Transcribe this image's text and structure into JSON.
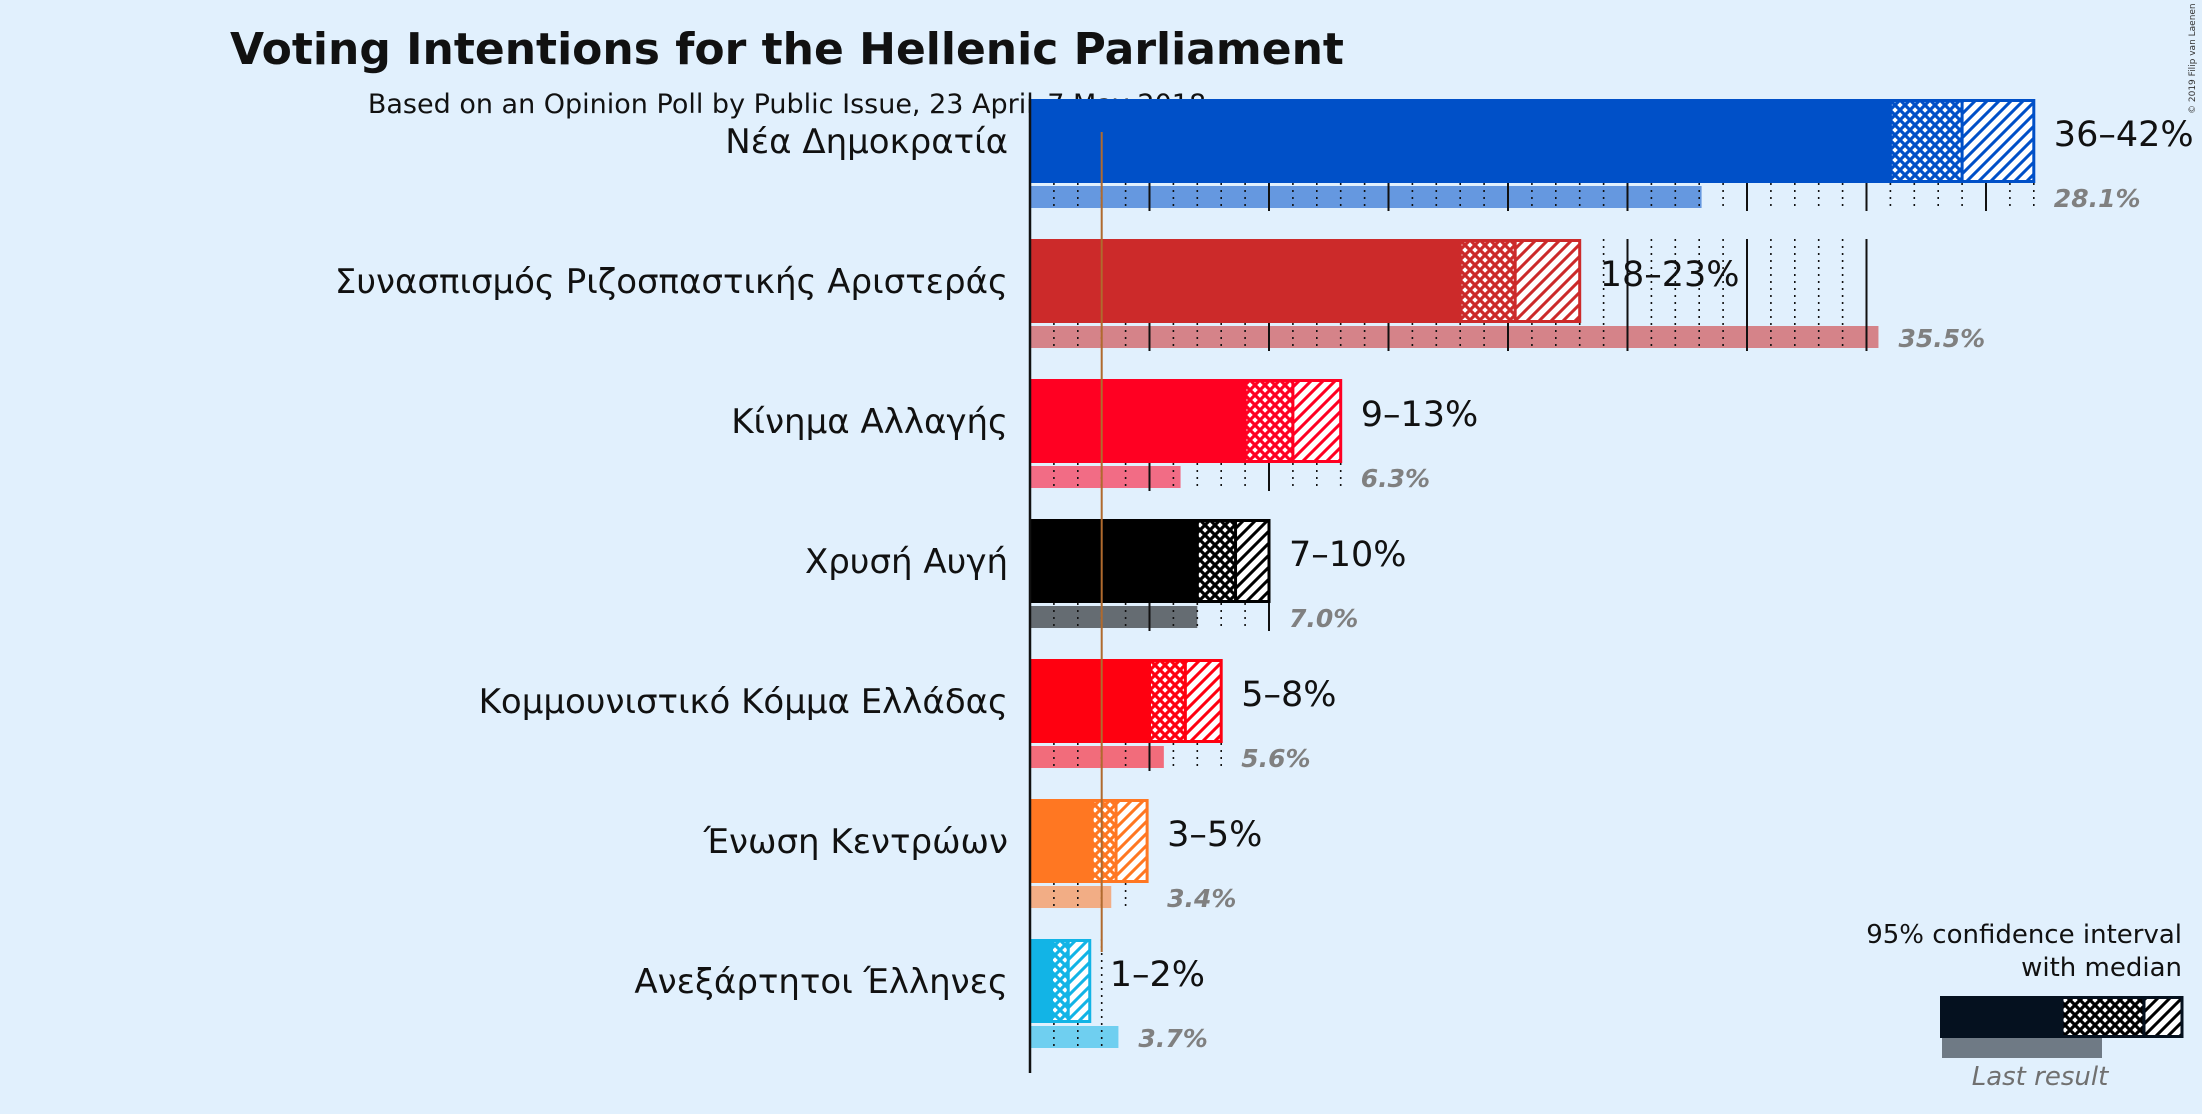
{
  "chart_data": {
    "type": "bar",
    "title": "Voting Intentions for the Hellenic Parliament",
    "subtitle": "Based on an Opinion Poll by Public Issue, 23 April–7 May 2018",
    "copyright": "© 2019 Filip van Laenen",
    "threshold": 3,
    "xlim": [
      0,
      42
    ],
    "series": [
      {
        "name": "Νέα Δημοκρατία",
        "color": "#0050c8",
        "lower": 36,
        "median": 39,
        "upper": 42,
        "range_label": "36–42%",
        "last_result": 28.1,
        "last_label": "28.1%"
      },
      {
        "name": "Συνασπισμός Ριζοσπαστικής Αριστεράς",
        "color": "#cc2a2a",
        "lower": 18,
        "median": 20.3,
        "upper": 23,
        "range_label": "18–23%",
        "last_result": 35.5,
        "last_label": "35.5%"
      },
      {
        "name": "Κίνημα Αλλαγής",
        "color": "#ff0022",
        "lower": 9,
        "median": 11,
        "upper": 13,
        "range_label": "9–13%",
        "last_result": 6.3,
        "last_label": "6.3%"
      },
      {
        "name": "Χρυσή Αυγή",
        "color": "#000000",
        "lower": 7,
        "median": 8.6,
        "upper": 10,
        "range_label": "7–10%",
        "last_result": 7.0,
        "last_label": "7.0%"
      },
      {
        "name": "Κομμουνιστικό Κόμμα Ελλάδας",
        "color": "#ff0010",
        "lower": 5,
        "median": 6.5,
        "upper": 8,
        "range_label": "5–8%",
        "last_result": 5.6,
        "last_label": "5.6%"
      },
      {
        "name": "Ένωση Κεντρώων",
        "color": "#ff7722",
        "lower": 2.6,
        "median": 3.6,
        "upper": 4.9,
        "range_label": "3–5%",
        "last_result": 3.4,
        "last_label": "3.4%"
      },
      {
        "name": "Ανεξάρτητοι Έλληνες",
        "color": "#12b4e6",
        "lower": 0.9,
        "median": 1.6,
        "upper": 2.5,
        "range_label": "1–2%",
        "last_result": 3.7,
        "last_label": "3.7%"
      }
    ],
    "legend": {
      "line1": "95% confidence interval",
      "line2": "with median",
      "last_result_label": "Last result",
      "color": "#000000",
      "placement": "bottom-right"
    }
  }
}
